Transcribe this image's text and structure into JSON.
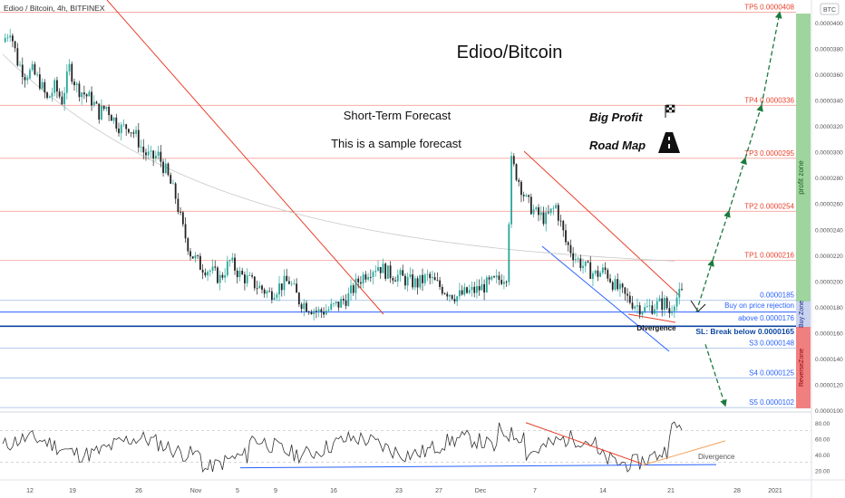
{
  "header": {
    "symbol_info": "Edioo / Bitcoin, 4h, BITFINEX",
    "currency_badge": "BTC"
  },
  "annotations": {
    "title": "Edioo/Bitcoin",
    "subtitle1": "Short-Term Forecast",
    "subtitle2": "This is a sample forecast",
    "big_profit": "Big Profit",
    "road_map": "Road Map",
    "divergence_price": "Divergence",
    "divergence_rsi": "Divergence",
    "buy_rejection": "Buy on price rejection",
    "above_level": "above 0.0000176",
    "sl_label": "SL: Break below 0.0000165",
    "profit_zone": "profit zone",
    "buy_zone": "Buy Zone",
    "reverse_zone": "ReverseZone",
    "flag_icon": "checkered-flag-icon",
    "road_icon": "road-icon"
  },
  "levels": [
    {
      "label": "TP5 0.0000408",
      "value": 4.08e-05,
      "color": "#f4a29a",
      "text_color": "#e8412c"
    },
    {
      "label": "TP4 0.0000336",
      "value": 3.36e-05,
      "color": "#f4a29a",
      "text_color": "#e8412c"
    },
    {
      "label": "TP3 0.0000295",
      "value": 2.95e-05,
      "color": "#f4a29a",
      "text_color": "#e8412c"
    },
    {
      "label": "TP2 0.0000254",
      "value": 2.54e-05,
      "color": "#f4a29a",
      "text_color": "#e8412c"
    },
    {
      "label": "TP1 0.0000216",
      "value": 2.16e-05,
      "color": "#f4a29a",
      "text_color": "#e8412c"
    },
    {
      "label": "0.0000185",
      "value": 1.85e-05,
      "color": "#9cbbe6",
      "text_color": "#2962ff"
    },
    {
      "label": "S3 0.0000148",
      "value": 1.48e-05,
      "color": "#9cbbe6",
      "text_color": "#2962ff"
    },
    {
      "label": "S4 0.0000125",
      "value": 1.25e-05,
      "color": "#9cbbe6",
      "text_color": "#2962ff"
    },
    {
      "label": "S5 0.0000102",
      "value": 1.02e-05,
      "color": "#9cbbe6",
      "text_color": "#2962ff"
    }
  ],
  "colors": {
    "up": "#26a69a",
    "down": "#222222",
    "resistance": "#e8412c",
    "support": "#2962ff",
    "arrow": "#1b7a3e",
    "profit_zone": "#9fd49f",
    "buy_zone": "#c9d3f0",
    "reverse_zone": "#f08080",
    "rsi_line": "#333333"
  },
  "chart_data": {
    "type": "candlestick",
    "price_axis": {
      "ticks": [
        "0.0000400",
        "0.0000380",
        "0.0000360",
        "0.0000340",
        "0.0000320",
        "0.0000300",
        "0.0000280",
        "0.0000260",
        "0.0000240",
        "0.0000220",
        "0.0000200",
        "0.0000180",
        "0.0000160",
        "0.0000140",
        "0.0000120",
        "0.0000100"
      ],
      "range": [
        1e-05,
        4.1e-05
      ]
    },
    "x_axis": {
      "ticks": [
        "12",
        "19",
        "26",
        "Nov",
        "5",
        "9",
        "16",
        "23",
        "27",
        "Dec",
        "7",
        "14",
        "21",
        "28",
        "2021"
      ]
    },
    "close_path": [
      [
        0,
        3.85e-05
      ],
      [
        3,
        3.95e-05
      ],
      [
        6,
        3.7e-05
      ],
      [
        9,
        3.6e-05
      ],
      [
        12,
        3.62e-05
      ],
      [
        15,
        3.54e-05
      ],
      [
        18,
        3.4e-05
      ],
      [
        21,
        3.5e-05
      ],
      [
        24,
        3.4e-05
      ],
      [
        27,
        3.65e-05
      ],
      [
        30,
        3.5e-05
      ],
      [
        33,
        3.45e-05
      ],
      [
        36,
        3.4e-05
      ],
      [
        39,
        3.3e-05
      ],
      [
        42,
        3.35e-05
      ],
      [
        45,
        3.25e-05
      ],
      [
        48,
        3.18e-05
      ],
      [
        51,
        3.2e-05
      ],
      [
        54,
        3.12e-05
      ],
      [
        57,
        3e-05
      ],
      [
        60,
        2.95e-05
      ],
      [
        63,
        2.97e-05
      ],
      [
        66,
        2.85e-05
      ],
      [
        70,
        2.65e-05
      ],
      [
        73,
        2.4e-05
      ],
      [
        76,
        2.22e-05
      ],
      [
        80,
        2.12e-05
      ],
      [
        84,
        2.08e-05
      ],
      [
        88,
        2.02e-05
      ],
      [
        92,
        2.15e-05
      ],
      [
        96,
        2.05e-05
      ],
      [
        100,
        2e-05
      ],
      [
        104,
        1.95e-05
      ],
      [
        108,
        1.9e-05
      ],
      [
        112,
        1.96e-05
      ],
      [
        116,
        2e-05
      ],
      [
        120,
        1.85e-05
      ],
      [
        124,
        1.8e-05
      ],
      [
        128,
        1.76e-05
      ],
      [
        132,
        1.78e-05
      ],
      [
        136,
        1.82e-05
      ],
      [
        140,
        1.88e-05
      ],
      [
        144,
        2e-05
      ],
      [
        148,
        2.08e-05
      ],
      [
        152,
        2.12e-05
      ],
      [
        156,
        2.06e-05
      ],
      [
        160,
        2.04e-05
      ],
      [
        164,
        2e-05
      ],
      [
        168,
        1.98e-05
      ],
      [
        172,
        2.03e-05
      ],
      [
        176,
        1.97e-05
      ],
      [
        180,
        1.92e-05
      ],
      [
        184,
        1.88e-05
      ],
      [
        188,
        1.91e-05
      ],
      [
        192,
        1.93e-05
      ],
      [
        196,
        1.97e-05
      ],
      [
        200,
        2e-05
      ],
      [
        204,
        2.05e-05
      ],
      [
        206,
        2.92e-05
      ],
      [
        209,
        2.78e-05
      ],
      [
        212,
        2.62e-05
      ],
      [
        216,
        2.52e-05
      ],
      [
        220,
        2.48e-05
      ],
      [
        224,
        2.58e-05
      ],
      [
        228,
        2.3e-05
      ],
      [
        232,
        2.18e-05
      ],
      [
        236,
        2.1e-05
      ],
      [
        240,
        2.05e-05
      ],
      [
        244,
        2.08e-05
      ],
      [
        248,
        1.96e-05
      ],
      [
        252,
        1.88e-05
      ],
      [
        256,
        1.82e-05
      ],
      [
        260,
        1.78e-05
      ],
      [
        264,
        1.81e-05
      ],
      [
        268,
        1.83e-05
      ],
      [
        270,
        1.76e-05
      ],
      [
        272,
        1.86e-05
      ],
      [
        275,
        1.9e-05
      ]
    ],
    "projection": [
      1.76e-05,
      2.16e-05,
      2.54e-05,
      2.95e-05,
      3.36e-05,
      4.08e-05
    ],
    "projection_down": [
      1.65e-05,
      1.02e-05
    ],
    "rsi": {
      "ticks": [
        "80.00",
        "60.00",
        "40.00",
        "20.00"
      ],
      "range": [
        10,
        90
      ]
    }
  }
}
